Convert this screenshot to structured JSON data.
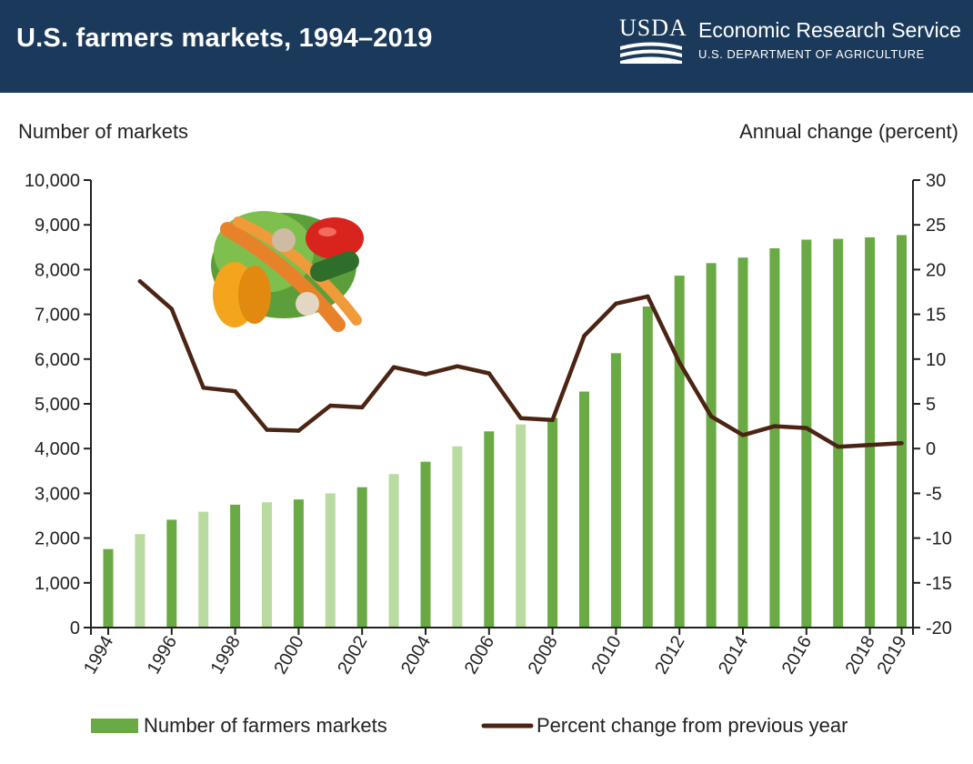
{
  "header": {
    "title": "U.S. farmers markets, 1994–2019",
    "logo_text": "USDA",
    "org_name": "Economic Research Service",
    "dept_name": "U.S. DEPARTMENT OF AGRICULTURE"
  },
  "colors": {
    "header_bg": "#1b3a5b",
    "bar_dark": "#6aaa44",
    "bar_light": "#b9dba0",
    "line": "#4b2413"
  },
  "chart_data": {
    "type": "bar",
    "title": "U.S. farmers markets, 1994–2019",
    "ylabel": "Number of markets",
    "ylabel_right": "Annual change (percent)",
    "ylim": [
      0,
      10000
    ],
    "ylim_right": [
      -20,
      30
    ],
    "yticks": [
      0,
      1000,
      2000,
      3000,
      4000,
      5000,
      6000,
      7000,
      8000,
      9000,
      10000
    ],
    "ytick_labels": [
      "0",
      "1,000",
      "2,000",
      "3,000",
      "4,000",
      "5,000",
      "6,000",
      "7,000",
      "8,000",
      "9,000",
      "10,000"
    ],
    "yticks_right": [
      -20,
      -15,
      -10,
      -5,
      0,
      5,
      10,
      15,
      20,
      25,
      30
    ],
    "ytick_labels_right": [
      "-20",
      "-15",
      "-10",
      "-5",
      "0",
      "5",
      "10",
      "15",
      "20",
      "25",
      "30"
    ],
    "categories": [
      "1994",
      "1995",
      "1996",
      "1997",
      "1998",
      "1999",
      "2000",
      "2001",
      "2002",
      "2003",
      "2004",
      "2005",
      "2006",
      "2007",
      "2008",
      "2009",
      "2010",
      "2011",
      "2012",
      "2013",
      "2014",
      "2015",
      "2016",
      "2017",
      "2018",
      "2019"
    ],
    "x_tick_labels": [
      "1994",
      "1996",
      "1998",
      "2000",
      "2002",
      "2004",
      "2006",
      "2008",
      "2010",
      "2012",
      "2014",
      "2016",
      "2018",
      "2019"
    ],
    "series": [
      {
        "name": "Number of farmers markets",
        "kind": "bar",
        "values": [
          1755,
          2090,
          2410,
          2590,
          2746,
          2800,
          2863,
          3000,
          3137,
          3430,
          3706,
          4050,
          4385,
          4540,
          4685,
          5274,
          6132,
          7175,
          7864,
          8144,
          8268,
          8476,
          8669,
          8687,
          8720,
          8771
        ],
        "shade": [
          "dark",
          "light",
          "dark",
          "light",
          "dark",
          "light",
          "dark",
          "light",
          "dark",
          "light",
          "dark",
          "light",
          "dark",
          "light",
          "dark",
          "dark",
          "dark",
          "dark",
          "dark",
          "dark",
          "dark",
          "dark",
          "dark",
          "dark",
          "dark",
          "dark"
        ]
      },
      {
        "name": "Percent change from previous year",
        "kind": "line",
        "x": [
          "1995",
          "1996",
          "1997",
          "1998",
          "1999",
          "2000",
          "2001",
          "2002",
          "2003",
          "2004",
          "2005",
          "2006",
          "2007",
          "2008",
          "2009",
          "2010",
          "2011",
          "2012",
          "2013",
          "2014",
          "2015",
          "2016",
          "2017",
          "2018",
          "2019"
        ],
        "values": [
          18.7,
          15.6,
          6.8,
          6.4,
          2.1,
          2.0,
          4.8,
          4.6,
          9.1,
          8.3,
          9.2,
          8.4,
          3.4,
          3.2,
          12.6,
          16.2,
          17.0,
          9.6,
          3.6,
          1.5,
          2.5,
          2.3,
          0.2,
          0.4,
          0.6
        ]
      }
    ],
    "legend": [
      "Number of farmers markets",
      "Percent change from previous year"
    ],
    "legend_position": "bottom",
    "grid": false
  }
}
